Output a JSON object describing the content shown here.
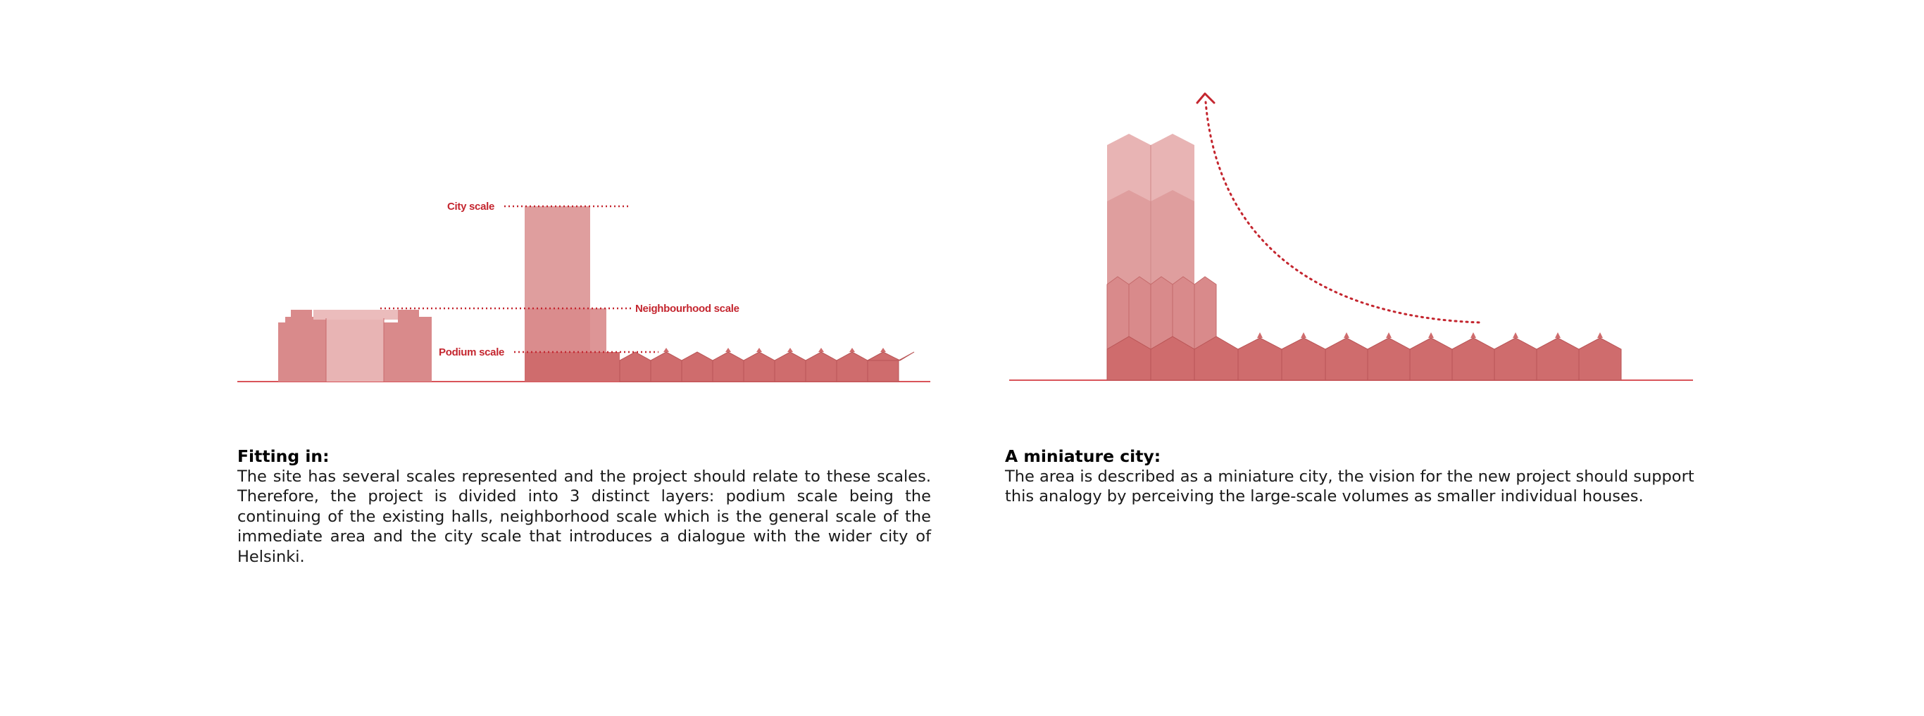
{
  "left_panel": {
    "labels": {
      "city_scale": "City scale",
      "neighbourhood_scale": "Neighbourhood scale",
      "podium_scale": "Podium scale"
    },
    "caption_title": "Fitting in:",
    "caption_body": "The site has several scales represented and the project should relate to these scales. Therefore, the project is divided into 3 distinct layers: podium scale being the continuing of the existing halls, neighborhood scale which is the general scale of the immediate area and the city scale that introduces a dialogue with the wider city of Helsinki."
  },
  "right_panel": {
    "caption_title": "A miniature city:",
    "caption_body": "The area is described as a miniature city, the vision for the new project should support this analogy by perceiving the large-scale volumes as smaller individual houses."
  },
  "colors": {
    "accent": "#c4262f",
    "podium": "#cf6c6d",
    "neighbourhood": "#df9e9e",
    "city": "#e8b4b4",
    "ground_line": "#d9545a"
  }
}
